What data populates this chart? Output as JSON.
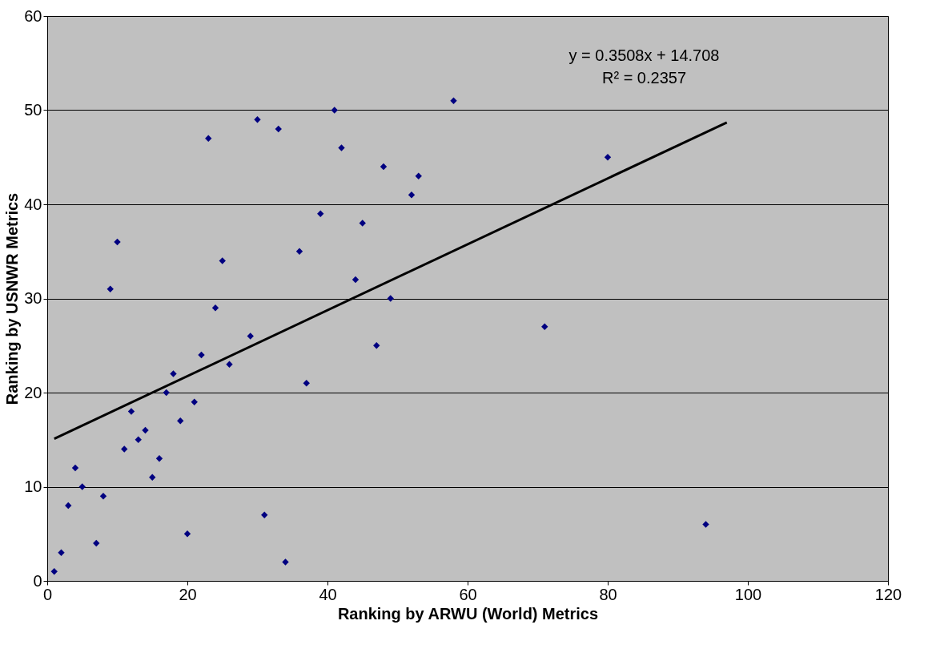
{
  "chart_data": {
    "type": "scatter",
    "xlabel": "Ranking by ARWU (World) Metrics",
    "ylabel": "Ranking by USNWR Metrics",
    "xlim": [
      0,
      120
    ],
    "xticks": [
      0,
      20,
      40,
      60,
      80,
      100,
      120
    ],
    "ylim": [
      0,
      60
    ],
    "yticks": [
      0,
      10,
      20,
      30,
      40,
      50,
      60
    ],
    "grid": "y",
    "annotations": [
      "y = 0.3508x + 14.708",
      "R² = 0.2357"
    ],
    "series": [
      {
        "marker": "diamond",
        "color": "#000080",
        "x": [
          1,
          2,
          3,
          4,
          5,
          7,
          8,
          9,
          10,
          11,
          12,
          13,
          14,
          15,
          16,
          17,
          18,
          19,
          20,
          21,
          22,
          23,
          24,
          25,
          26,
          29,
          30,
          31,
          33,
          34,
          36,
          37,
          39,
          41,
          42,
          44,
          45,
          47,
          48,
          49,
          52,
          53,
          58,
          71,
          80,
          94
        ],
        "values": [
          1,
          3,
          8,
          12,
          10,
          4,
          9,
          31,
          36,
          14,
          18,
          15,
          16,
          11,
          13,
          20,
          22,
          17,
          5,
          19,
          24,
          47,
          29,
          34,
          23,
          26,
          49,
          7,
          48,
          2,
          35,
          21,
          39,
          50,
          46,
          32,
          38,
          25,
          44,
          30,
          41,
          43,
          51,
          27,
          45,
          6
        ]
      },
      {
        "type": "line",
        "color": "#000000",
        "x": [
          1,
          97
        ],
        "values": [
          15.1,
          48.7
        ]
      }
    ]
  }
}
